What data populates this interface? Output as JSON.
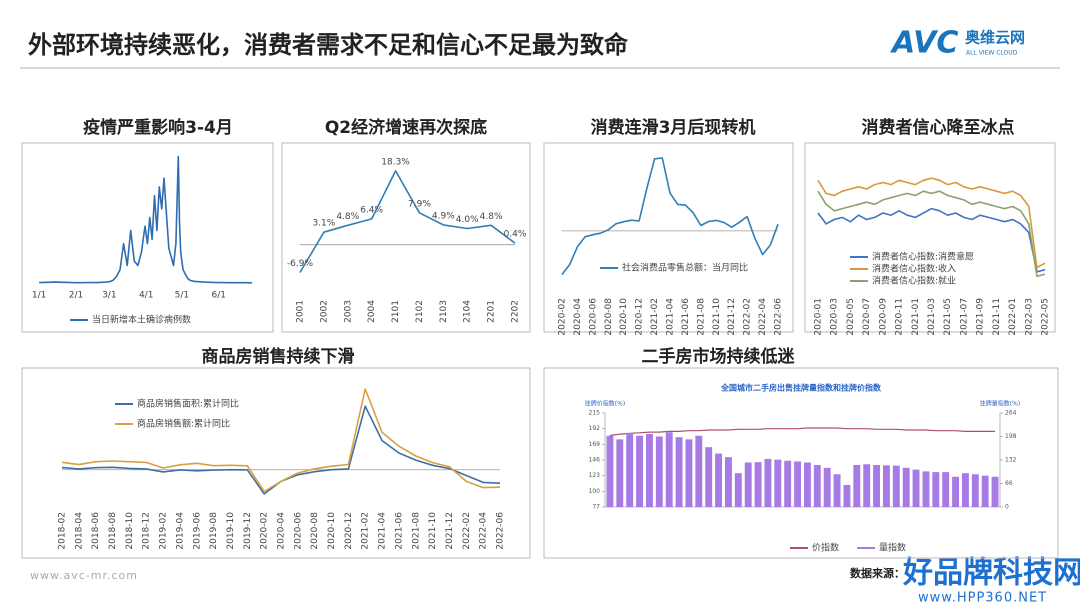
{
  "header": {
    "title": "外部环境持续恶化，消费者需求不足和信心不足最为致命",
    "logo": "AVC",
    "logo_cn": "奥维云网",
    "logo_en": "ALL VIEW CLOUD"
  },
  "footer": {
    "url": "www.avc-mr.com",
    "source": "数据来源：",
    "watermark": "好品牌科技网",
    "watermark_url": "www.HPP360.NET"
  },
  "chart_data": [
    {
      "type": "line",
      "title": "疫情严重影响3-4月",
      "x": [
        1,
        8,
        15,
        22,
        29,
        36,
        43,
        50,
        57,
        60,
        63,
        66,
        69,
        72,
        75,
        78,
        81,
        84,
        87,
        90,
        92,
        94,
        96,
        98,
        100,
        102,
        104,
        106,
        108,
        110,
        112,
        114,
        116,
        118,
        119,
        120,
        122,
        124,
        126,
        128,
        131,
        135,
        140,
        145,
        150,
        155,
        160,
        165,
        170,
        175,
        180
      ],
      "xlim": [
        -5,
        185
      ],
      "xticks": [
        {
          "value": 1,
          "label": "1/1"
        },
        {
          "value": 32,
          "label": "2/1"
        },
        {
          "value": 60,
          "label": "3/1"
        },
        {
          "value": 91,
          "label": "4/1"
        },
        {
          "value": 121,
          "label": "5/1"
        },
        {
          "value": 152,
          "label": "6/1"
        }
      ],
      "ylim": [
        0,
        30000
      ],
      "series": [
        {
          "name": "当日新增本土确诊病例数",
          "color": "#2f6db0",
          "values": [
            100,
            150,
            200,
            150,
            100,
            80,
            120,
            100,
            200,
            300,
            600,
            1500,
            3000,
            9000,
            4000,
            12000,
            5000,
            4000,
            7000,
            13000,
            9000,
            15000,
            10000,
            20000,
            12000,
            22000,
            17000,
            24000,
            16000,
            8000,
            6000,
            4000,
            9000,
            29000,
            14000,
            7000,
            3000,
            2000,
            1000,
            600,
            400,
            300,
            200,
            150,
            100,
            120,
            80,
            60,
            80,
            60,
            50
          ]
        }
      ]
    },
    {
      "type": "line",
      "title": "Q2经济增速再次探底",
      "categories": [
        "2001",
        "2002",
        "2003",
        "2004",
        "2101",
        "2102",
        "2103",
        "2104",
        "2201",
        "2202"
      ],
      "values": [
        -6.9,
        3.1,
        4.8,
        6.4,
        18.3,
        7.9,
        4.9,
        4.0,
        4.8,
        0.4
      ],
      "value_labels": [
        "-6.9%",
        "3.1%",
        "4.8%",
        "6.4%",
        "18.3%",
        "7.9%",
        "4.9%",
        "4.0%",
        "4.8%",
        "0.4%"
      ],
      "color": "#2f7fb6",
      "ylim": [
        -10,
        21
      ],
      "zero_line": true
    },
    {
      "type": "line",
      "title": "消费连滑3月后现转机",
      "categories": [
        "2020-02",
        null,
        "2020-04",
        null,
        "2020-06",
        null,
        "2020-08",
        null,
        "2020-10",
        null,
        "2020-12",
        null,
        "2021-02",
        null,
        "2021-04",
        null,
        "2021-06",
        null,
        "2021-08",
        null,
        "2021-10",
        null,
        "2021-12",
        null,
        "2022-02",
        null,
        "2022-04",
        null,
        "2022-06"
      ],
      "ylim": [
        -24,
        37
      ],
      "zero_line": true,
      "series": [
        {
          "name": "社会消费品零售总额：当月同比",
          "color": "#2f7fb6",
          "values": [
            -20.5,
            -15.8,
            -7.5,
            -2.8,
            -1.8,
            -1.1,
            0.5,
            3.3,
            4.3,
            5.0,
            4.6,
            20,
            33.8,
            34.2,
            17.7,
            12.4,
            12.1,
            8.5,
            2.5,
            4.4,
            4.9,
            3.9,
            1.7,
            4,
            6.7,
            -3.5,
            -11.1,
            -6.7,
            3.1
          ]
        }
      ]
    },
    {
      "type": "line",
      "title": "消费者信心降至冰点",
      "categories": [
        "2020-01",
        null,
        "2020-03",
        null,
        "2020-05",
        null,
        "2020-07",
        null,
        "2020-09",
        null,
        "2020-11",
        null,
        "2021-01",
        null,
        "2021-03",
        null,
        "2021-05",
        null,
        "2021-07",
        null,
        "2021-09",
        null,
        "2021-11",
        null,
        "2022-01",
        null,
        "2022-03",
        null,
        "2022-05"
      ],
      "ylim": [
        80,
        135
      ],
      "series": [
        {
          "name": "消费者信心指数:消费意愿",
          "color": "#4472c4",
          "values": [
            113,
            108,
            110,
            111,
            109,
            112,
            110,
            111,
            113,
            112,
            114,
            112,
            111,
            113,
            115,
            114,
            112,
            113,
            111,
            110,
            112,
            111,
            110,
            109,
            110,
            108,
            104,
            86,
            87
          ]
        },
        {
          "name": "消费者信心指数:收入",
          "color": "#d59a3a",
          "values": [
            128,
            122,
            121,
            123,
            124,
            125,
            124,
            126,
            127,
            126,
            128,
            127,
            126,
            128,
            129,
            128,
            126,
            127,
            125,
            124,
            125,
            124,
            123,
            122,
            123,
            121,
            116,
            88,
            90
          ]
        },
        {
          "name": "消费者信心指数:就业",
          "color": "#8aa36b",
          "values": [
            123,
            117,
            114,
            115,
            116,
            117,
            118,
            117,
            119,
            120,
            121,
            122,
            121,
            123,
            122,
            123,
            121,
            120,
            119,
            117,
            118,
            117,
            116,
            115,
            116,
            114,
            108,
            84,
            85
          ]
        }
      ]
    },
    {
      "type": "line",
      "title": "商品房销售持续下滑",
      "categories": [
        "2018-02",
        "2018-04",
        "2018-06",
        "2018-08",
        "2018-10",
        "2018-12",
        "2019-02",
        "2019-04",
        "2019-06",
        "2019-08",
        "2019-10",
        "2019-12",
        "2020-02",
        "2020-04",
        "2020-06",
        "2020-08",
        "2020-10",
        "2020-12",
        "2021-02",
        "2021-04",
        "2021-06",
        "2021-08",
        "2021-10",
        "2021-12",
        "2022-02",
        "2022-04",
        "2022-06"
      ],
      "ylim": [
        -50,
        140
      ],
      "zero_line": true,
      "series": [
        {
          "name": "商品房销售面积:累计同比",
          "color": "#3f6fa6",
          "values": [
            3.6,
            1.3,
            3.3,
            4.0,
            2.2,
            1.3,
            -3.6,
            -0.3,
            -1.8,
            -0.6,
            0.1,
            -0.1,
            -39.9,
            -19.3,
            -8.4,
            -3.3,
            0.0,
            1.3,
            104.9,
            48.1,
            27.7,
            15.9,
            7.3,
            1.9,
            -9.6,
            -20.9,
            -22.2
          ]
        },
        {
          "name": "商品房销售额:累计同比",
          "color": "#d9a03f",
          "values": [
            12.3,
            8.5,
            13.2,
            14.5,
            13.3,
            12.2,
            2.8,
            8.1,
            10.7,
            6.7,
            7.3,
            6.5,
            -35.9,
            -19.3,
            -5.4,
            1.6,
            5.8,
            8.7,
            133.4,
            61.7,
            38.9,
            22.7,
            11.8,
            4.8,
            -19.3,
            -29.5,
            -28.9
          ]
        }
      ]
    },
    {
      "type": "combo",
      "title": "二手房市场持续低迷",
      "subtitle": "全国城市二手房出售挂牌量指数和挂牌价指数",
      "y_label": "挂牌价指数(%)",
      "y2_label": "挂牌量指数(%)",
      "categories": [
        null,
        null,
        null,
        null,
        null,
        null,
        null,
        null,
        null,
        null,
        null,
        null,
        null,
        null,
        null,
        null,
        null,
        null,
        null,
        null,
        null,
        null,
        null,
        null,
        null,
        null,
        null,
        null,
        null,
        null,
        null,
        null,
        null,
        null,
        null,
        null,
        null,
        null,
        null,
        null
      ],
      "ylim": [
        77,
        215
      ],
      "yticks": [
        77,
        100,
        123,
        146,
        169,
        192,
        215
      ],
      "y2lim": [
        0,
        264
      ],
      "y2ticks": [
        0,
        66,
        132,
        198,
        264
      ],
      "series": [
        {
          "name": "价指数",
          "type": "line",
          "color": "#b0506a",
          "values": [
            182,
            184,
            185,
            186,
            187,
            187,
            188,
            188,
            189,
            189,
            190,
            190,
            190,
            191,
            191,
            191,
            192,
            192,
            192,
            192,
            193,
            193,
            193,
            193,
            192,
            192,
            192,
            191,
            191,
            191,
            190,
            190,
            190,
            189,
            189,
            189,
            188,
            188,
            188,
            188
          ]
        },
        {
          "name": "量指数",
          "type": "bar",
          "axis": "y2",
          "color": "#a77be6",
          "values": [
            200,
            190,
            208,
            200,
            205,
            198,
            210,
            196,
            190,
            200,
            168,
            150,
            140,
            95,
            125,
            126,
            135,
            133,
            130,
            128,
            125,
            118,
            110,
            92,
            62,
            118,
            120,
            118,
            117,
            116,
            110,
            105,
            100,
            98,
            98,
            85,
            95,
            92,
            88,
            85
          ]
        }
      ]
    }
  ]
}
